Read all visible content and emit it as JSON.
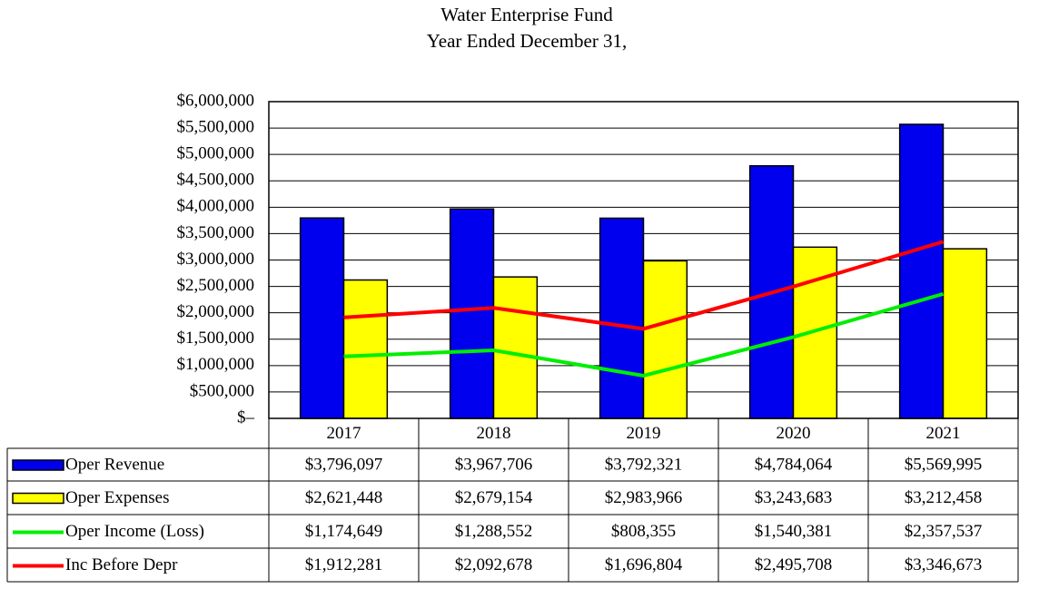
{
  "chart_data": {
    "type": "bar",
    "title": "Water Enterprise Fund",
    "subtitle": "Year Ended December 31,",
    "categories": [
      "2017",
      "2018",
      "2019",
      "2020",
      "2021"
    ],
    "ylim": [
      0,
      6000000
    ],
    "yticks": [
      {
        "value": 0,
        "label": "$–"
      },
      {
        "value": 500000,
        "label": "$500,000"
      },
      {
        "value": 1000000,
        "label": "$1,000,000"
      },
      {
        "value": 1500000,
        "label": "$1,500,000"
      },
      {
        "value": 2000000,
        "label": "$2,000,000"
      },
      {
        "value": 2500000,
        "label": "$2,500,000"
      },
      {
        "value": 3000000,
        "label": "$3,000,000"
      },
      {
        "value": 3500000,
        "label": "$3,500,000"
      },
      {
        "value": 4000000,
        "label": "$4,000,000"
      },
      {
        "value": 4500000,
        "label": "$4,500,000"
      },
      {
        "value": 5000000,
        "label": "$5,000,000"
      },
      {
        "value": 5500000,
        "label": "$5,500,000"
      },
      {
        "value": 6000000,
        "label": "$6,000,000"
      }
    ],
    "grid": true,
    "series": [
      {
        "name": "Oper Revenue",
        "type": "bar",
        "color": "#0000ee",
        "values": [
          3796097,
          3967706,
          3792321,
          4784064,
          5569995
        ],
        "value_labels": [
          "$3,796,097",
          "$3,967,706",
          "$3,792,321",
          "$4,784,064",
          "$5,569,995"
        ]
      },
      {
        "name": "Oper Expenses",
        "type": "bar",
        "color": "#ffff00",
        "values": [
          2621448,
          2679154,
          2983966,
          3243683,
          3212458
        ],
        "value_labels": [
          "$2,621,448",
          "$2,679,154",
          "$2,983,966",
          "$3,243,683",
          "$3,212,458"
        ]
      },
      {
        "name": "Oper Income (Loss)",
        "type": "line",
        "color": "#00ee00",
        "values": [
          1174649,
          1288552,
          808355,
          1540381,
          2357537
        ],
        "value_labels": [
          "$1,174,649",
          "$1,288,552",
          "$808,355",
          "$1,540,381",
          "$2,357,537"
        ]
      },
      {
        "name": "Inc Before Depr",
        "type": "line",
        "color": "#ff0000",
        "values": [
          1912281,
          2092678,
          1696804,
          2495708,
          3346673
        ],
        "value_labels": [
          "$1,912,281",
          "$2,092,678",
          "$1,696,804",
          "$2,495,708",
          "$3,346,673"
        ]
      }
    ]
  }
}
